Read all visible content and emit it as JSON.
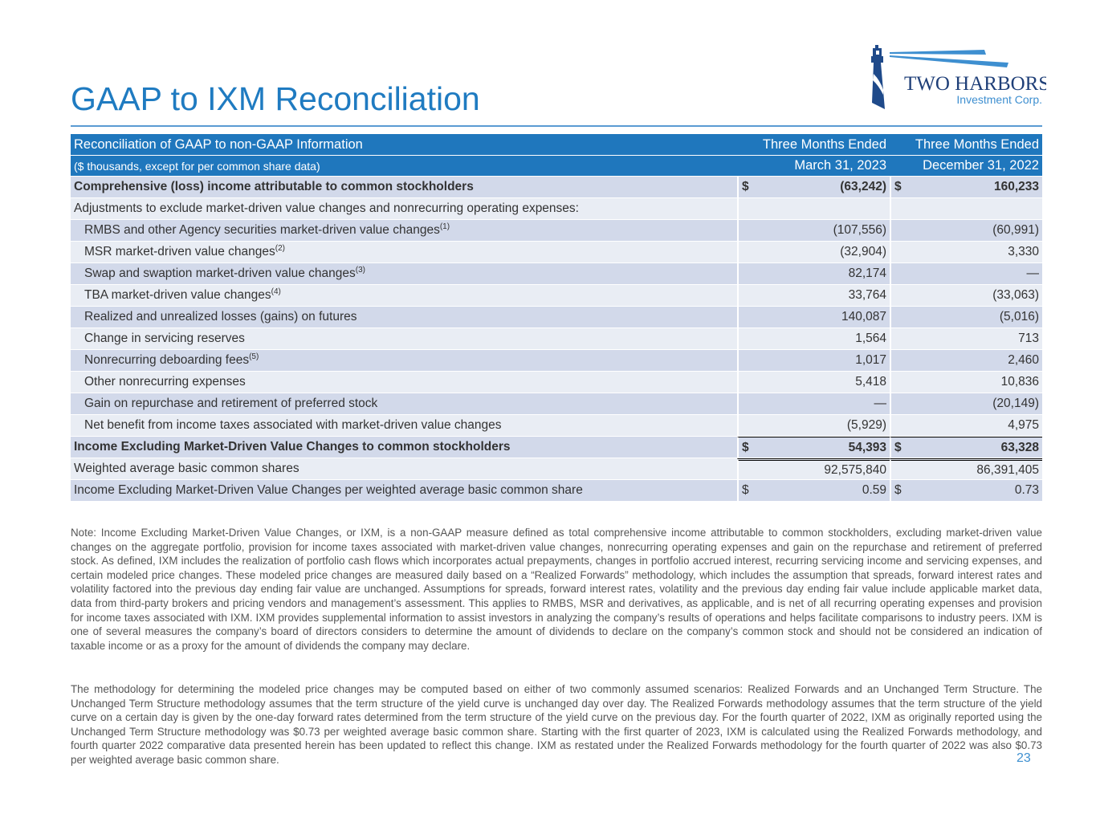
{
  "title": "GAAP to IXM Reconciliation",
  "logo": {
    "name": "TWO HARBORS",
    "sub": "Investment Corp."
  },
  "table": {
    "header": {
      "label": "Reconciliation of GAAP to non-GAAP Information",
      "sublabel": "($ thousands, except for per common share data)",
      "col1_top": "Three Months Ended",
      "col1_bottom": "March 31, 2023",
      "col2_top": "Three Months Ended",
      "col2_bottom": "December 31, 2022"
    },
    "rows": [
      {
        "label": "Comprehensive (loss) income attributable to common stockholders",
        "cur": "$",
        "v1": "(63,242)",
        "v2": "160,233",
        "bold": true
      },
      {
        "label": "Adjustments to exclude market-driven value changes and nonrecurring operating expenses:",
        "v1": "",
        "v2": ""
      },
      {
        "label": "RMBS and other Agency securities market-driven value changes",
        "sup": "(1)",
        "v1": "(107,556)",
        "v2": "(60,991)",
        "indent": true
      },
      {
        "label": "MSR market-driven value changes",
        "sup": "(2)",
        "v1": "(32,904)",
        "v2": "3,330",
        "indent": true
      },
      {
        "label": "Swap and swaption market-driven value changes",
        "sup": "(3)",
        "v1": "82,174",
        "v2": "—",
        "indent": true
      },
      {
        "label": "TBA market-driven value changes",
        "sup": "(4)",
        "v1": "33,764",
        "v2": "(33,063)",
        "indent": true
      },
      {
        "label": "Realized and unrealized losses (gains) on futures",
        "v1": "140,087",
        "v2": "(5,016)",
        "indent": true
      },
      {
        "label": "Change in servicing reserves",
        "v1": "1,564",
        "v2": "713",
        "indent": true
      },
      {
        "label": "Nonrecurring deboarding fees",
        "sup": "(5)",
        "v1": "1,017",
        "v2": "2,460",
        "indent": true
      },
      {
        "label": "Other nonrecurring expenses",
        "v1": "5,418",
        "v2": "10,836",
        "indent": true
      },
      {
        "label": "Gain on repurchase and retirement of preferred stock",
        "v1": "—",
        "v2": "(20,149)",
        "indent": true
      },
      {
        "label": "Net benefit from income taxes associated with market-driven value changes",
        "v1": "(5,929)",
        "v2": "4,975",
        "indent": true
      },
      {
        "label": "Income Excluding Market-Driven Value Changes to common stockholders",
        "cur": "$",
        "v1": "54,393",
        "v2": "63,328",
        "bold": true
      },
      {
        "label": "Weighted average basic common shares",
        "v1": "92,575,840",
        "v2": "86,391,405"
      },
      {
        "label": "Income Excluding Market-Driven Value Changes per weighted average basic common share",
        "cur": "$",
        "v1": "0.59",
        "v2": "0.73"
      }
    ]
  },
  "notes": [
    "Note: Income Excluding Market-Driven Value Changes, or IXM, is a non-GAAP measure defined as total comprehensive income attributable to common stockholders, excluding market-driven value changes on the aggregate portfolio, provision for income taxes associated with market-driven value changes, nonrecurring operating expenses and gain on the repurchase and retirement of preferred stock. As defined, IXM includes the realization of portfolio cash flows which incorporates actual prepayments, changes in portfolio accrued interest, recurring servicing income and servicing expenses, and certain modeled price changes. These modeled price changes are measured daily based on a “Realized Forwards” methodology, which includes the assumption that spreads, forward interest rates and volatility factored into the previous day ending fair value are unchanged. Assumptions for spreads, forward interest rates, volatility and the previous day ending fair value include applicable market data, data from third-party brokers and pricing vendors and management’s assessment. This applies to RMBS, MSR and derivatives, as applicable, and is net of all recurring operating expenses and provision for income taxes associated with IXM. IXM provides supplemental information to assist investors in analyzing the company’s results of operations and helps facilitate comparisons to industry peers. IXM is one of several measures the company’s board of directors considers to determine the amount of dividends to declare on the company’s common stock and should not be considered an indication of taxable income or as a proxy for the amount of dividends the company may declare.",
    "The methodology for determining the modeled price changes may be computed based on either of two commonly assumed scenarios: Realized Forwards and an Unchanged Term Structure. The Unchanged Term Structure methodology assumes that the term structure of the yield curve is unchanged day over day. The Realized Forwards methodology assumes that the term structure of the yield curve on a certain day is given by the one-day forward rates determined from the term structure of the yield curve on the previous day. For the fourth quarter of 2022, IXM as originally reported using the Unchanged Term Structure methodology was $0.73 per weighted average basic common share.  Starting with the first quarter of 2023, IXM is calculated using the Realized Forwards methodology, and fourth quarter 2022 comparative data presented herein has been updated to reflect this change. IXM as restated under the Realized Forwards methodology for the fourth quarter of 2022 was also $0.73 per weighted average basic common share."
  ],
  "page_number": "23"
}
